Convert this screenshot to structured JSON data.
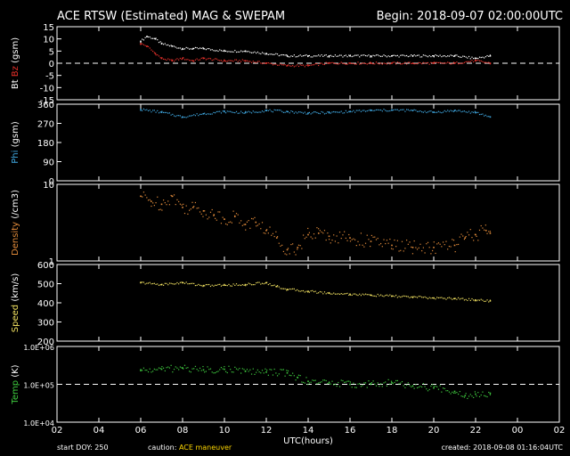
{
  "header": {
    "title": "ACE RTSW (Estimated) MAG & SWEPAM",
    "begin": "Begin: 2018-09-07 02:00:00UTC"
  },
  "footer": {
    "start_doy": "start DOY: 250",
    "caution_label": "caution:",
    "caution_value": "ACE maneuver",
    "created": "created: 2018-09-08 01:16:04UTC"
  },
  "colors": {
    "bt": "#ffffff",
    "bz": "#e8302a",
    "phi": "#3fa7e0",
    "density": "#e08a3a",
    "speed": "#f0e060",
    "temp": "#3fcc3f"
  },
  "chart_data": {
    "type": "scatter",
    "xlabel": "UTC(hours)",
    "x_ticks": [
      "02",
      "04",
      "06",
      "08",
      "10",
      "12",
      "14",
      "16",
      "18",
      "20",
      "22",
      "00",
      "02"
    ],
    "xlim": [
      2,
      26
    ],
    "panels": [
      {
        "id": "mag",
        "ylabel_parts": [
          {
            "text": "Bt",
            "color": "#ffffff"
          },
          {
            "text": " Bz ",
            "color": "#e8302a"
          },
          {
            "text": "(gsm)",
            "color": "#ffffff"
          }
        ],
        "ylim": [
          -15,
          15
        ],
        "ticks": [
          15,
          10,
          5,
          0,
          -5,
          -10,
          -15
        ],
        "tick_labels": [
          "15",
          "10",
          "5",
          "0",
          "-5",
          "-10",
          "-15"
        ],
        "dashed_at": 0,
        "series": [
          {
            "name": "Bt",
            "color": "#ffffff",
            "x": [
              6.0,
              6.3,
              6.7,
              7.0,
              7.5,
              8.0,
              8.5,
              9.0,
              10.0,
              11.0,
              12.0,
              13.0,
              14.0,
              15.0,
              16.0,
              17.0,
              18.0,
              19.0,
              20.0,
              21.0,
              22.0,
              22.7
            ],
            "y": [
              9,
              11,
              10,
              8,
              7,
              6,
              6,
              6,
              5,
              5,
              4,
              3,
              3,
              3,
              3,
              3,
              3,
              3,
              3,
              3,
              2,
              3
            ]
          },
          {
            "name": "Bz",
            "color": "#e8302a",
            "x": [
              6.0,
              6.3,
              6.7,
              7.0,
              7.5,
              8.0,
              8.5,
              9.0,
              10.0,
              11.0,
              12.0,
              13.0,
              14.0,
              15.0,
              16.0,
              17.0,
              18.0,
              19.0,
              20.0,
              21.0,
              22.0,
              22.7
            ],
            "y": [
              8,
              7,
              4,
              2,
              1,
              2,
              1,
              2,
              1,
              1,
              0,
              -1,
              -1,
              0,
              0,
              0,
              0,
              0,
              0,
              0,
              1,
              0
            ]
          }
        ]
      },
      {
        "id": "phi",
        "ylabel_parts": [
          {
            "text": "Phi",
            "color": "#3fa7e0"
          },
          {
            "text": " (gsm)",
            "color": "#ffffff"
          }
        ],
        "ylim": [
          0,
          360
        ],
        "ticks": [
          360,
          270,
          180,
          90,
          0
        ],
        "tick_labels": [
          "360",
          "270",
          "180",
          "90",
          "0"
        ],
        "series": [
          {
            "name": "Phi",
            "color": "#3fa7e0",
            "x": [
              6.0,
              7.0,
              8.0,
              9.0,
              10.0,
              11.0,
              12.0,
              13.0,
              14.0,
              15.0,
              16.0,
              17.0,
              18.0,
              19.0,
              20.0,
              21.0,
              22.0,
              22.7
            ],
            "y": [
              335,
              322,
              300,
              315,
              325,
              320,
              330,
              325,
              318,
              320,
              325,
              330,
              332,
              330,
              322,
              330,
              320,
              300
            ]
          }
        ]
      },
      {
        "id": "density",
        "ylabel_parts": [
          {
            "text": "Density",
            "color": "#e08a3a"
          },
          {
            "text": " (/cm3)",
            "color": "#ffffff"
          }
        ],
        "ylim": [
          1,
          10
        ],
        "log": true,
        "ticks": [
          10,
          1
        ],
        "tick_labels": [
          "10",
          "1"
        ],
        "series": [
          {
            "name": "Density",
            "color": "#e08a3a",
            "x": [
              6.0,
              6.5,
              7.0,
              7.5,
              8.0,
              8.5,
              9.0,
              9.5,
              10.0,
              10.5,
              11.0,
              11.5,
              12.0,
              12.5,
              13.0,
              13.5,
              14.0,
              14.5,
              15.0,
              16.0,
              17.0,
              18.0,
              19.0,
              20.0,
              21.0,
              21.5,
              22.0,
              22.5,
              22.7
            ],
            "y": [
              7,
              6,
              5.5,
              7,
              5,
              5,
              4.5,
              4,
              3.5,
              3.8,
              3,
              3.2,
              2.5,
              2,
              1.4,
              1.5,
              2.2,
              2.3,
              2.1,
              2.0,
              1.8,
              1.6,
              1.5,
              1.5,
              1.6,
              2.0,
              2.2,
              2.5,
              2.3
            ]
          }
        ]
      },
      {
        "id": "speed",
        "ylabel_parts": [
          {
            "text": "Speed",
            "color": "#f0e060"
          },
          {
            "text": " (km/s)",
            "color": "#ffffff"
          }
        ],
        "ylim": [
          200,
          600
        ],
        "ticks": [
          600,
          500,
          400,
          300,
          200
        ],
        "tick_labels": [
          "600",
          "500",
          "400",
          "300",
          "200"
        ],
        "series": [
          {
            "name": "Speed",
            "color": "#f0e060",
            "x": [
              6.0,
              7.0,
              8.0,
              9.0,
              10.0,
              11.0,
              12.0,
              12.5,
              13.0,
              14.0,
              15.0,
              16.0,
              17.0,
              18.0,
              19.0,
              20.0,
              21.0,
              22.0,
              22.7
            ],
            "y": [
              505,
              495,
              505,
              490,
              492,
              495,
              505,
              485,
              470,
              460,
              450,
              445,
              440,
              435,
              430,
              425,
              422,
              415,
              410
            ]
          }
        ]
      },
      {
        "id": "temp",
        "ylabel_parts": [
          {
            "text": "Temp",
            "color": "#3fcc3f"
          },
          {
            "text": " (K)",
            "color": "#ffffff"
          }
        ],
        "ylim": [
          10000,
          1000000
        ],
        "log": true,
        "ticks": [
          1000000,
          100000,
          10000
        ],
        "tick_labels": [
          "1.0E+06",
          "1.0E+05",
          "1.0E+04"
        ],
        "dashed_at": 100000,
        "series": [
          {
            "name": "Temp",
            "color": "#3fcc3f",
            "x": [
              6.0,
              7.0,
              8.0,
              9.0,
              10.0,
              11.0,
              12.0,
              13.0,
              13.5,
              14.0,
              15.0,
              16.0,
              17.0,
              18.0,
              19.0,
              20.0,
              21.0,
              21.5,
              22.0,
              22.7
            ],
            "y": [
              230000,
              250000,
              270000,
              240000,
              250000,
              220000,
              210000,
              200000,
              150000,
              120000,
              110000,
              100000,
              100000,
              110000,
              90000,
              80000,
              65000,
              50000,
              55000,
              58000
            ]
          }
        ]
      }
    ]
  }
}
